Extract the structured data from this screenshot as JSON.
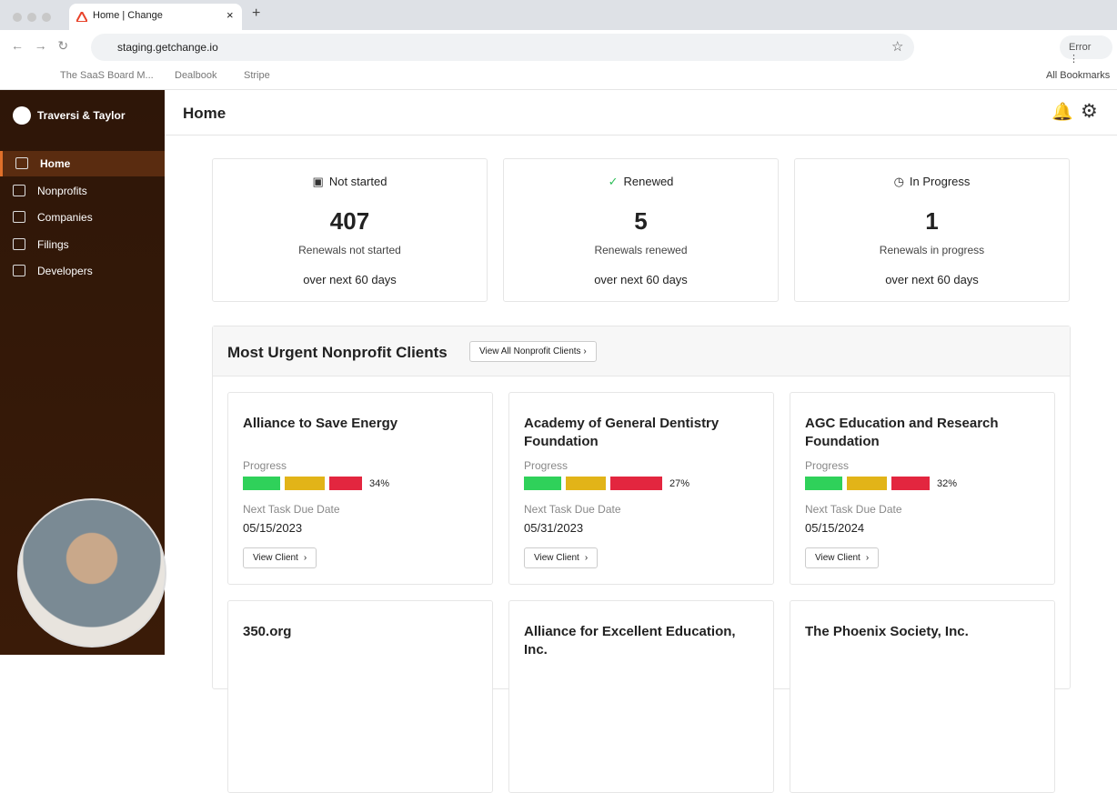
{
  "browser": {
    "tab_title": "Home | Change",
    "url": "staging.getchange.io",
    "bookmarks": [
      "The SaaS Board M...",
      "Dealbook",
      "Stripe"
    ],
    "all_bookmarks": "All Bookmarks",
    "status": "Error"
  },
  "sidebar": {
    "org": "Traversi & Taylor",
    "nav": [
      "Home",
      "Nonprofits",
      "Companies",
      "Filings",
      "Developers"
    ]
  },
  "header": {
    "title": "Home"
  },
  "stats": [
    {
      "label": "Not started",
      "value": 407,
      "caption": "Renewals not started",
      "period": "over next 60 days"
    },
    {
      "label": "Renewed",
      "value": 5,
      "caption": "Renewals renewed",
      "period": "over next 60 days"
    },
    {
      "label": "In Progress",
      "value": 1,
      "caption": "Renewals in progress",
      "period": "over next 60 days"
    }
  ],
  "clients": {
    "title": "Most Urgent Nonprofit Clients",
    "view_all": "View All Nonprofit Clients",
    "progress_label": "Progress",
    "due_label": "Next Task Due Date",
    "button": "View Client",
    "items": [
      {
        "name": "Alliance to Save Energy",
        "progress": "34%",
        "due": "05/15/2023"
      },
      {
        "name": "Academy of General Dentistry Foundation",
        "progress": "27%",
        "due": "05/31/2023"
      },
      {
        "name": "AGC Education and Research Foundation",
        "progress": "32%",
        "due": "05/15/2024"
      },
      {
        "name": "350.org"
      },
      {
        "name": "Alliance for Excellent Education, Inc."
      },
      {
        "name": "The Phoenix Society, Inc."
      }
    ]
  }
}
